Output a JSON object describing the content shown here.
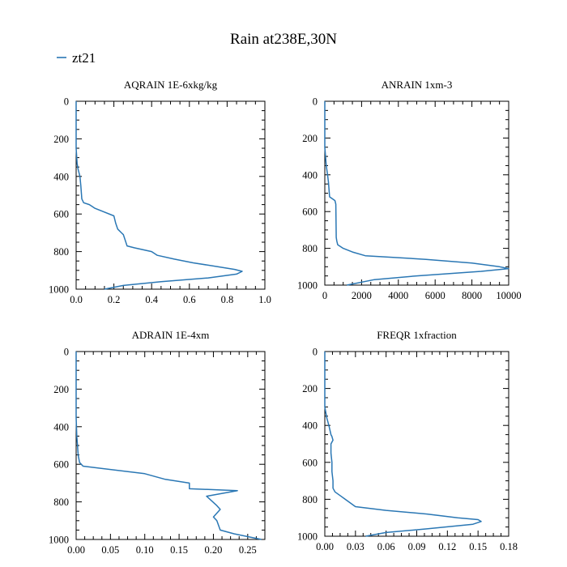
{
  "figure": {
    "title": "Rain at238E,30N",
    "legend": [
      {
        "label": "zt21",
        "color": "#2a77b4"
      }
    ]
  },
  "chart_data": [
    {
      "type": "line",
      "title": "AQRAIN  1E-6xkg/kg",
      "xlim": [
        0,
        1.0
      ],
      "xticks": [
        "0.0",
        "0.2",
        "0.4",
        "0.6",
        "0.8",
        "1.0"
      ],
      "xtick_values": [
        0,
        0.2,
        0.4,
        0.6,
        0.8,
        1.0
      ],
      "ylim": [
        0,
        1000
      ],
      "y_inverted": true,
      "yticks": [
        "0",
        "200",
        "400",
        "600",
        "800",
        "1000"
      ],
      "ytick_values": [
        0,
        200,
        400,
        600,
        800,
        1000
      ],
      "series": [
        {
          "name": "zt21",
          "x": [
            0,
            0,
            0.005,
            0.01,
            0.02,
            0.025,
            0.03,
            0.04,
            0.07,
            0.1,
            0.2,
            0.21,
            0.22,
            0.24,
            0.25,
            0.27,
            0.31,
            0.4,
            0.43,
            0.52,
            0.62,
            0.75,
            0.84,
            0.88,
            0.85,
            0.7,
            0.45,
            0.25,
            0.15
          ],
          "y": [
            0,
            250,
            330,
            360,
            400,
            450,
            520,
            540,
            550,
            570,
            610,
            650,
            680,
            700,
            710,
            770,
            780,
            800,
            820,
            840,
            860,
            880,
            895,
            905,
            920,
            940,
            960,
            980,
            1000
          ]
        }
      ]
    },
    {
      "type": "line",
      "title": "ANRAIN  1xm-3",
      "xlim": [
        0,
        10000
      ],
      "xticks": [
        "0",
        "2000",
        "4000",
        "6000",
        "8000",
        "10000"
      ],
      "xtick_values": [
        0,
        2000,
        4000,
        6000,
        8000,
        10000
      ],
      "ylim": [
        0,
        1000
      ],
      "y_inverted": true,
      "yticks": [
        "0",
        "200",
        "400",
        "600",
        "800",
        "1000"
      ],
      "ytick_values": [
        0,
        200,
        400,
        600,
        800,
        1000
      ],
      "series": [
        {
          "name": "zt21",
          "x": [
            0,
            0,
            80,
            150,
            200,
            260,
            550,
            600,
            620,
            650,
            700,
            1000,
            1500,
            2200,
            5500,
            8000,
            9500,
            10000,
            8500,
            5000,
            2700,
            1200
          ],
          "y": [
            0,
            250,
            350,
            400,
            440,
            520,
            540,
            560,
            740,
            760,
            780,
            800,
            820,
            840,
            860,
            880,
            900,
            910,
            925,
            950,
            970,
            1000
          ]
        }
      ]
    },
    {
      "type": "line",
      "title": "ADRAIN  1E-4xm",
      "xlim": [
        0,
        0.275
      ],
      "xticks": [
        "0.00",
        "0.05",
        "0.10",
        "0.15",
        "0.20",
        "0.25"
      ],
      "xtick_values": [
        0,
        0.05,
        0.1,
        0.15,
        0.2,
        0.25
      ],
      "ylim": [
        0,
        1000
      ],
      "y_inverted": true,
      "yticks": [
        "0",
        "200",
        "400",
        "600",
        "800",
        "1000"
      ],
      "ytick_values": [
        0,
        200,
        400,
        600,
        800,
        1000
      ],
      "series": [
        {
          "name": "zt21",
          "x": [
            0,
            0,
            0.001,
            0.002,
            0.003,
            0.005,
            0.01,
            0.1,
            0.13,
            0.165,
            0.165,
            0.235,
            0.19,
            0.205,
            0.21,
            0.2,
            0.205,
            0.21,
            0.23,
            0.27
          ],
          "y": [
            0,
            350,
            450,
            500,
            550,
            590,
            610,
            650,
            680,
            700,
            730,
            740,
            770,
            820,
            840,
            880,
            900,
            950,
            970,
            1000
          ]
        }
      ]
    },
    {
      "type": "line",
      "title": "FREQR  1xfraction",
      "xlim": [
        0,
        0.18
      ],
      "xticks": [
        "0.00",
        "0.03",
        "0.06",
        "0.09",
        "0.12",
        "0.15",
        "0.18"
      ],
      "xtick_values": [
        0,
        0.03,
        0.06,
        0.09,
        0.12,
        0.15,
        0.18
      ],
      "ylim": [
        0,
        1000
      ],
      "y_inverted": true,
      "yticks": [
        "0",
        "200",
        "400",
        "600",
        "800",
        "1000"
      ],
      "ytick_values": [
        0,
        200,
        400,
        600,
        800,
        1000
      ],
      "series": [
        {
          "name": "zt21",
          "x": [
            0,
            0,
            0.002,
            0.004,
            0.006,
            0.007,
            0.008,
            0.006,
            0.006,
            0.007,
            0.007,
            0.008,
            0.008,
            0.01,
            0.015,
            0.02,
            0.03,
            0.06,
            0.1,
            0.13,
            0.15,
            0.153,
            0.145,
            0.1,
            0.06,
            0.04
          ],
          "y": [
            0,
            300,
            360,
            400,
            450,
            460,
            480,
            500,
            550,
            600,
            650,
            700,
            740,
            760,
            780,
            800,
            840,
            860,
            880,
            900,
            910,
            920,
            935,
            960,
            980,
            1000
          ]
        }
      ]
    }
  ]
}
